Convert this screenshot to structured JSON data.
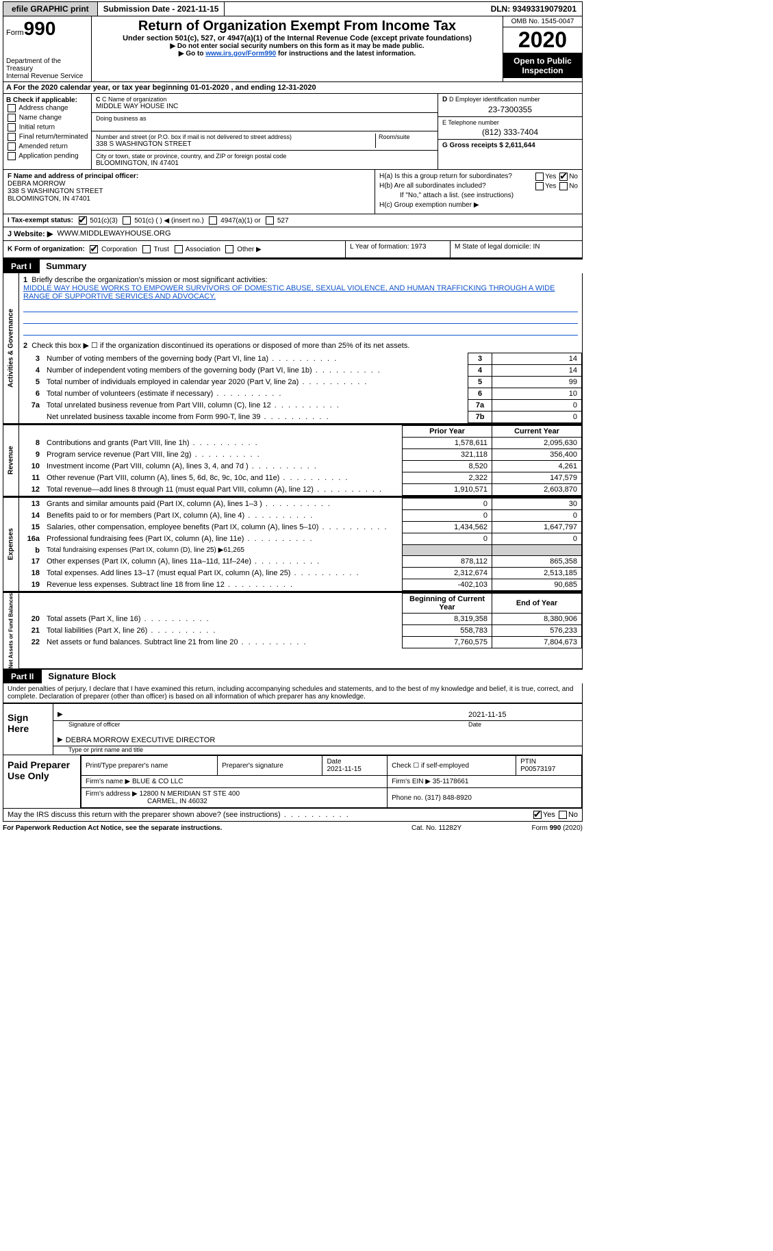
{
  "topbar": {
    "efile_label": "efile GRAPHIC print",
    "submission_label": "Submission Date - 2021-11-15",
    "dln": "DLN: 93493319079201"
  },
  "header": {
    "form_prefix": "Form",
    "form_number": "990",
    "dept1": "Department of the Treasury",
    "dept2": "Internal Revenue Service",
    "title": "Return of Organization Exempt From Income Tax",
    "subtitle": "Under section 501(c), 527, or 4947(a)(1) of the Internal Revenue Code (except private foundations)",
    "note1": "▶ Do not enter social security numbers on this form as it may be made public.",
    "note2_pre": "▶ Go to ",
    "note2_link": "www.irs.gov/Form990",
    "note2_post": " for instructions and the latest information.",
    "omb": "OMB No. 1545-0047",
    "year": "2020",
    "open_public": "Open to Public Inspection"
  },
  "period": "A For the 2020 calendar year, or tax year beginning 01-01-2020  , and ending 12-31-2020",
  "colB": {
    "header": "B Check if applicable:",
    "items": [
      "Address change",
      "Name change",
      "Initial return",
      "Final return/terminated",
      "Amended return",
      "Application pending"
    ]
  },
  "colC": {
    "name_label": "C Name of organization",
    "name": "MIDDLE WAY HOUSE INC",
    "dba_label": "Doing business as",
    "street_label": "Number and street (or P.O. box if mail is not delivered to street address)",
    "room_label": "Room/suite",
    "street": "338 S WASHINGTON STREET",
    "city_label": "City or town, state or province, country, and ZIP or foreign postal code",
    "city": "BLOOMINGTON, IN  47401"
  },
  "colD": {
    "ein_label": "D Employer identification number",
    "ein": "23-7300355",
    "phone_label": "E Telephone number",
    "phone": "(812) 333-7404",
    "gross_label": "G Gross receipts $ 2,611,644"
  },
  "fg": {
    "f_label": "F  Name and address of principal officer:",
    "f_name": "DEBRA MORROW",
    "f_addr1": "338 S WASHINGTON STREET",
    "f_addr2": "BLOOMINGTON, IN  47401",
    "ha": "H(a)  Is this a group return for subordinates?",
    "hb": "H(b)  Are all subordinates included?",
    "hb_note": "If \"No,\" attach a list. (see instructions)",
    "hc": "H(c)  Group exemption number ▶",
    "yes": "Yes",
    "no": "No"
  },
  "status": {
    "label": "I   Tax-exempt status:",
    "opts": [
      "501(c)(3)",
      "501(c) (  ) ◀ (insert no.)",
      "4947(a)(1) or",
      "527"
    ]
  },
  "website": {
    "label": "J  Website: ▶",
    "value": "WWW.MIDDLEWAYHOUSE.ORG"
  },
  "k_row": {
    "k_label": "K Form of organization:",
    "opts": [
      "Corporation",
      "Trust",
      "Association",
      "Other ▶"
    ],
    "l": "L Year of formation: 1973",
    "m": "M State of legal domicile: IN"
  },
  "part1": {
    "part": "Part I",
    "title": "Summary"
  },
  "mission": {
    "num": "1",
    "label": "Briefly describe the organization's mission or most significant activities:",
    "text": "MIDDLE WAY HOUSE WORKS TO EMPOWER SURVIVORS OF DOMESTIC ABUSE, SEXUAL VIOLENCE, AND HUMAN TRAFFICKING THROUGH A WIDE RANGE OF SUPPORTIVE SERVICES AND ADVOCACY."
  },
  "gov_lines": {
    "l2": "Check this box ▶ ☐  if the organization discontinued its operations or disposed of more than 25% of its net assets.",
    "rows": [
      {
        "n": "3",
        "lbl": "Number of voting members of the governing body (Part VI, line 1a)",
        "box": "3",
        "val": "14"
      },
      {
        "n": "4",
        "lbl": "Number of independent voting members of the governing body (Part VI, line 1b)",
        "box": "4",
        "val": "14"
      },
      {
        "n": "5",
        "lbl": "Total number of individuals employed in calendar year 2020 (Part V, line 2a)",
        "box": "5",
        "val": "99"
      },
      {
        "n": "6",
        "lbl": "Total number of volunteers (estimate if necessary)",
        "box": "6",
        "val": "10"
      },
      {
        "n": "7a",
        "lbl": "Total unrelated business revenue from Part VIII, column (C), line 12",
        "box": "7a",
        "val": "0"
      },
      {
        "n": "",
        "lbl": "Net unrelated business taxable income from Form 990-T, line 39",
        "box": "7b",
        "val": "0"
      }
    ]
  },
  "two_col_hdr": {
    "prior": "Prior Year",
    "current": "Current Year"
  },
  "revenue": [
    {
      "n": "8",
      "lbl": "Contributions and grants (Part VIII, line 1h)",
      "p": "1,578,611",
      "c": "2,095,630"
    },
    {
      "n": "9",
      "lbl": "Program service revenue (Part VIII, line 2g)",
      "p": "321,118",
      "c": "356,400"
    },
    {
      "n": "10",
      "lbl": "Investment income (Part VIII, column (A), lines 3, 4, and 7d )",
      "p": "8,520",
      "c": "4,261"
    },
    {
      "n": "11",
      "lbl": "Other revenue (Part VIII, column (A), lines 5, 6d, 8c, 9c, 10c, and 11e)",
      "p": "2,322",
      "c": "147,579"
    },
    {
      "n": "12",
      "lbl": "Total revenue—add lines 8 through 11 (must equal Part VIII, column (A), line 12)",
      "p": "1,910,571",
      "c": "2,603,870"
    }
  ],
  "expenses": [
    {
      "n": "13",
      "lbl": "Grants and similar amounts paid (Part IX, column (A), lines 1–3 )",
      "p": "0",
      "c": "30"
    },
    {
      "n": "14",
      "lbl": "Benefits paid to or for members (Part IX, column (A), line 4)",
      "p": "0",
      "c": "0"
    },
    {
      "n": "15",
      "lbl": "Salaries, other compensation, employee benefits (Part IX, column (A), lines 5–10)",
      "p": "1,434,562",
      "c": "1,647,797"
    },
    {
      "n": "16a",
      "lbl": "Professional fundraising fees (Part IX, column (A), line 11e)",
      "p": "0",
      "c": "0"
    },
    {
      "n": "b",
      "lbl": "Total fundraising expenses (Part IX, column (D), line 25) ▶61,265",
      "grey": true
    },
    {
      "n": "17",
      "lbl": "Other expenses (Part IX, column (A), lines 11a–11d, 11f–24e)",
      "p": "878,112",
      "c": "865,358"
    },
    {
      "n": "18",
      "lbl": "Total expenses. Add lines 13–17 (must equal Part IX, column (A), line 25)",
      "p": "2,312,674",
      "c": "2,513,185"
    },
    {
      "n": "19",
      "lbl": "Revenue less expenses. Subtract line 18 from line 12",
      "p": "-402,103",
      "c": "90,685"
    }
  ],
  "net_hdr": {
    "prior": "Beginning of Current Year",
    "current": "End of Year"
  },
  "netassets": [
    {
      "n": "20",
      "lbl": "Total assets (Part X, line 16)",
      "p": "8,319,358",
      "c": "8,380,906"
    },
    {
      "n": "21",
      "lbl": "Total liabilities (Part X, line 26)",
      "p": "558,783",
      "c": "576,233"
    },
    {
      "n": "22",
      "lbl": "Net assets or fund balances. Subtract line 21 from line 20",
      "p": "7,760,575",
      "c": "7,804,673"
    }
  ],
  "vlabels": {
    "gov": "Activities & Governance",
    "rev": "Revenue",
    "exp": "Expenses",
    "net": "Net Assets or Fund Balances"
  },
  "part2": {
    "part": "Part II",
    "title": "Signature Block",
    "decl": "Under penalties of perjury, I declare that I have examined this return, including accompanying schedules and statements, and to the best of my knowledge and belief, it is true, correct, and complete. Declaration of preparer (other than officer) is based on all information of which preparer has any knowledge."
  },
  "sign": {
    "label": "Sign Here",
    "sig_of_officer": "Signature of officer",
    "date_label": "Date",
    "date": "2021-11-15",
    "name": "DEBRA MORROW  EXECUTIVE DIRECTOR",
    "name_sub": "Type or print name and title"
  },
  "prep": {
    "label": "Paid Preparer Use Only",
    "h1": "Print/Type preparer's name",
    "h2": "Preparer's signature",
    "h3": "Date",
    "h3v": "2021-11-15",
    "h4": "Check ☐  if self-employed",
    "h5": "PTIN",
    "h5v": "P00573197",
    "firm_name_l": "Firm's name    ▶",
    "firm_name": "BLUE & CO LLC",
    "firm_ein_l": "Firm's EIN ▶",
    "firm_ein": "35-1178661",
    "firm_addr_l": "Firm's address ▶",
    "firm_addr": "12800 N MERIDIAN ST STE 400",
    "firm_addr2": "CARMEL, IN  46032",
    "phone_l": "Phone no.",
    "phone": "(317) 848-8920"
  },
  "discuss": {
    "q": "May the IRS discuss this return with the preparer shown above? (see instructions)",
    "yes": "Yes",
    "no": "No"
  },
  "footer": {
    "l": "For Paperwork Reduction Act Notice, see the separate instructions.",
    "m": "Cat. No. 11282Y",
    "r": "Form 990 (2020)"
  }
}
